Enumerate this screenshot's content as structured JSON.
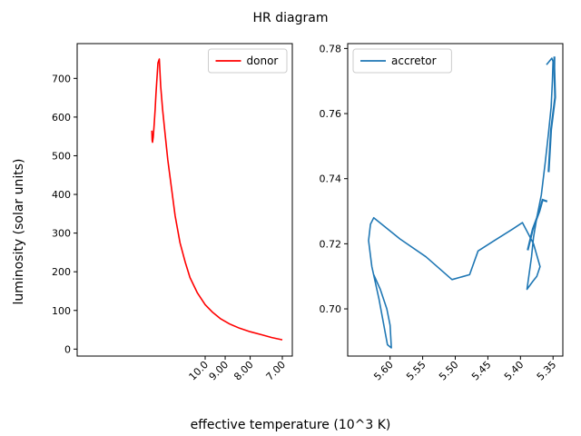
{
  "figure": {
    "title": "HR diagram",
    "xlabel": "effective temperature (10^3 K)",
    "ylabel": "luminosity (solar units)"
  },
  "chart_data": [
    {
      "type": "line",
      "series": [
        {
          "name": "donor",
          "color": "#ff0000",
          "x": [
            14.2,
            14.17,
            14.13,
            14.05,
            13.95,
            13.85,
            13.76,
            13.66,
            13.55,
            13.42,
            13.28,
            13.1,
            12.88,
            12.62,
            12.32,
            12.0,
            11.62,
            11.25,
            10.92,
            10.45,
            10.0,
            9.6,
            9.2,
            8.8,
            8.4,
            8.0,
            7.6,
            7.3,
            7.0
          ],
          "y": [
            565,
            540,
            535,
            548,
            580,
            620,
            660,
            700,
            740,
            750,
            680,
            620,
            560,
            490,
            420,
            345,
            275,
            225,
            185,
            145,
            115,
            95,
            78,
            65,
            54,
            45,
            37,
            30,
            24
          ]
        }
      ],
      "ylim": [
        -18,
        790
      ],
      "xticks": [
        {
          "value": 10.0,
          "label": "10.0"
        },
        {
          "value": 9.0,
          "label": "9.00"
        },
        {
          "value": 8.0,
          "label": "8.00"
        },
        {
          "value": 7.0,
          "label": "7.00"
        }
      ],
      "yticks": [
        "0",
        "100",
        "200",
        "300",
        "400",
        "500",
        "600",
        "700"
      ],
      "legend": "top-right"
    },
    {
      "type": "line",
      "series": [
        {
          "name": "accretor",
          "color": "#1f77b4",
          "x": [
            5.625,
            5.615,
            5.605,
            5.6,
            5.598,
            5.604,
            5.617,
            5.628,
            5.633,
            5.63,
            5.625,
            5.585,
            5.545,
            5.505,
            5.478,
            5.465,
            5.44,
            5.412,
            5.397,
            5.38,
            5.37,
            5.375,
            5.381,
            5.39,
            5.383,
            5.38,
            5.375,
            5.368,
            5.362,
            5.357,
            5.353,
            5.351,
            5.35,
            5.352,
            5.356,
            5.36
          ],
          "y": [
            0.7105,
            0.706,
            0.7,
            0.695,
            0.688,
            0.689,
            0.703,
            0.713,
            0.721,
            0.726,
            0.728,
            0.7215,
            0.716,
            0.709,
            0.7105,
            0.7178,
            0.721,
            0.7245,
            0.7265,
            0.72,
            0.713,
            0.71,
            0.7085,
            0.706,
            0.716,
            0.722,
            0.728,
            0.735,
            0.745,
            0.754,
            0.762,
            0.77,
            0.776,
            0.777,
            0.776,
            0.775
          ],
          "overlay_paths": [
            {
              "x": [
                5.39,
                5.38,
                5.372,
                5.365,
                5.36
              ],
              "y": [
                0.718,
                0.7245,
                0.73,
                0.7335,
                0.733
              ]
            },
            {
              "x": [
                5.358,
                5.352,
                5.348,
                5.347,
                5.349
              ],
              "y": [
                0.742,
                0.755,
                0.765,
                0.774,
                0.7775
              ]
            }
          ]
        }
      ],
      "xlim": [
        5.665,
        5.335
      ],
      "ylim": [
        0.6855,
        0.7815
      ],
      "xticks": [
        {
          "value": 5.6,
          "label": "5.60"
        },
        {
          "value": 5.55,
          "label": "5.55"
        },
        {
          "value": 5.5,
          "label": "5.50"
        },
        {
          "value": 5.45,
          "label": "5.45"
        },
        {
          "value": 5.4,
          "label": "5.40"
        },
        {
          "value": 5.35,
          "label": "5.35"
        }
      ],
      "yticks": [
        "0.70",
        "0.72",
        "0.74",
        "0.76",
        "0.78"
      ],
      "legend": "top-left"
    }
  ]
}
